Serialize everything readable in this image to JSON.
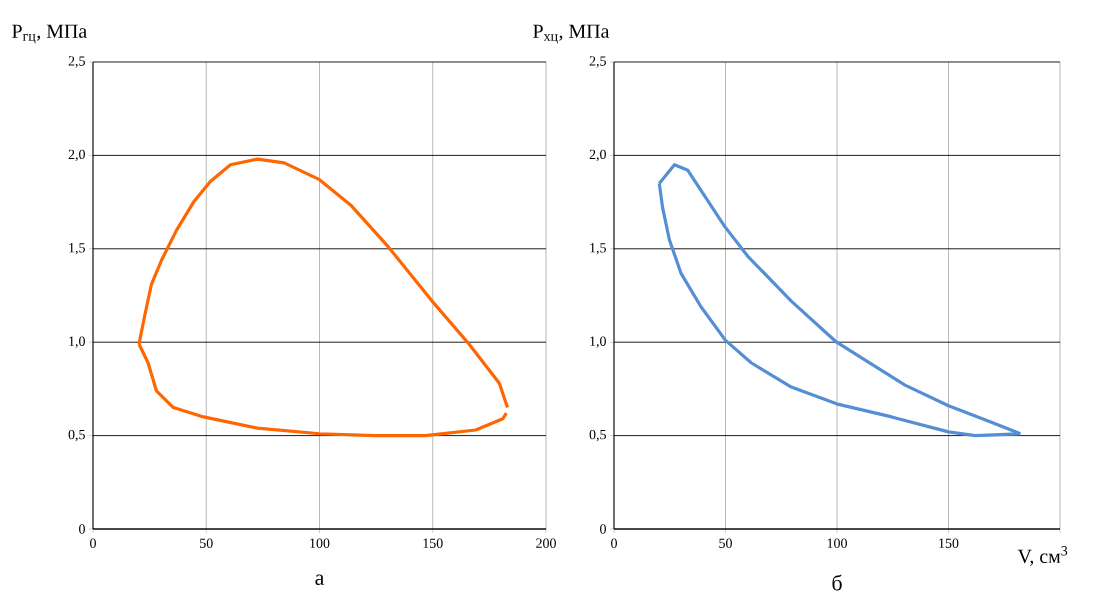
{
  "chart_data": [
    {
      "type": "line",
      "title": "а",
      "ylabel": "P$_{гц}$, МПа",
      "xlim": [
        0,
        200
      ],
      "ylim": [
        0,
        2.5
      ],
      "grid": true,
      "xticks": [
        0,
        50,
        100,
        150,
        200
      ],
      "yticks": [
        0,
        {
          "value": 0.5,
          "label": "0,5"
        },
        {
          "value": 1.0,
          "label": "1,0"
        },
        {
          "value": 1.5,
          "label": "1,5"
        },
        {
          "value": 2.0,
          "label": "2,0"
        },
        {
          "value": 2.5,
          "label": "2,5"
        }
      ],
      "series": [
        {
          "color": "#ff6600",
          "x": [
            20.3,
            22.8,
            25.8,
            30.3,
            36.9,
            44.4,
            51.8,
            60.7,
            72.6,
            84.4,
            100,
            114.1,
            130.4,
            149.7,
            166,
            179.4,
            183
          ],
          "values": [
            0.99,
            1.14,
            1.31,
            1.44,
            1.6,
            1.75,
            1.86,
            1.95,
            1.98,
            1.96,
            1.87,
            1.73,
            1.51,
            1.22,
            0.99,
            0.78,
            0.65
          ]
        },
        {
          "color": "#ff6600",
          "x": [
            20.3,
            24.3,
            28,
            35.5,
            48.8,
            72.6,
            100,
            124.5,
            146.7,
            169,
            180.9,
            182.5
          ],
          "values": [
            0.99,
            0.89,
            0.74,
            0.65,
            0.6,
            0.54,
            0.51,
            0.5,
            0.5,
            0.53,
            0.59,
            0.62
          ]
        }
      ]
    },
    {
      "type": "line",
      "title": "б",
      "ylabel": "P$_{хц}$, МПа",
      "xlabel": "V, см$^{3}$",
      "xlim": [
        0,
        200
      ],
      "ylim": [
        0,
        2.5
      ],
      "grid": true,
      "xticks": [
        0,
        50,
        100,
        150,
        {
          "value": 200,
          "label": null
        }
      ],
      "yticks": [
        0,
        {
          "value": 0.5,
          "label": "0,5"
        },
        {
          "value": 1.0,
          "label": "1,0"
        },
        {
          "value": 1.5,
          "label": "1,5"
        },
        {
          "value": 2.0,
          "label": "2,0"
        },
        {
          "value": 2.5,
          "label": "2,5"
        }
      ],
      "series": [
        {
          "color": "#558ed5",
          "x": [
            20.3,
            27.1,
            33.1,
            49.6,
            60,
            79.5,
            99.8,
            130.5,
            150,
            169.5,
            182.2
          ],
          "values": [
            1.85,
            1.95,
            1.92,
            1.62,
            1.46,
            1.22,
            1.0,
            0.77,
            0.66,
            0.57,
            0.51
          ]
        },
        {
          "color": "#558ed5",
          "x": [
            20.3,
            21.8,
            24.8,
            30,
            39,
            50,
            61.5,
            79.5,
            99.8,
            124.5,
            150,
            162,
            182.2
          ],
          "values": [
            1.85,
            1.72,
            1.55,
            1.37,
            1.19,
            1.01,
            0.89,
            0.76,
            0.67,
            0.6,
            0.52,
            0.5,
            0.51
          ]
        }
      ]
    }
  ]
}
